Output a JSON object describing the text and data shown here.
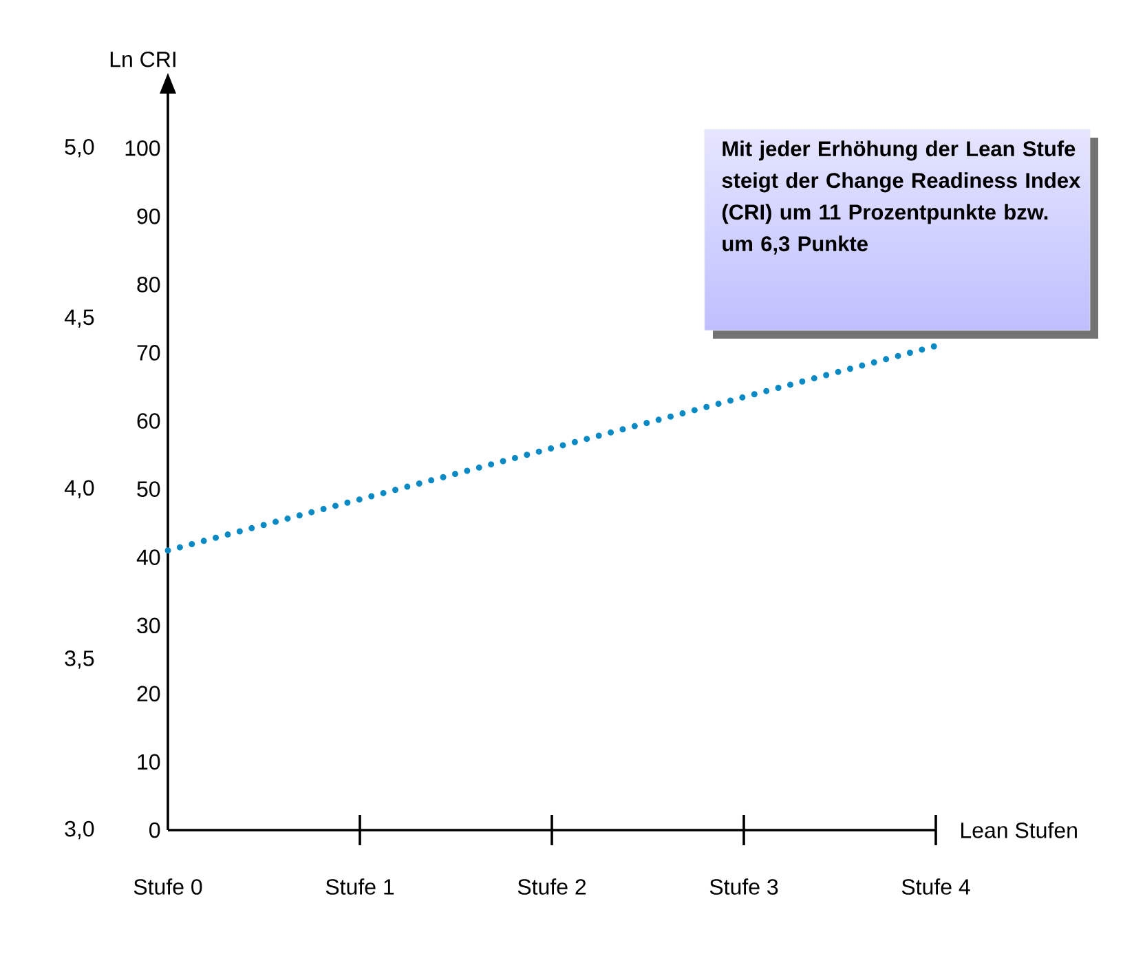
{
  "chart_data": {
    "type": "line",
    "categories": [
      "Stufe 0",
      "Stufe 1",
      "Stufe 2",
      "Stufe 3",
      "Stufe 4"
    ],
    "values": [
      41,
      48.5,
      56,
      63.5,
      71
    ],
    "color": "#0a8ac4",
    "line_style": "dotted",
    "marker": "none",
    "grid": false,
    "xlabel": "Lean Stufen",
    "ylabel": "Ln CRI",
    "ylim": [
      0,
      108
    ],
    "yticks": [
      0,
      10,
      20,
      30,
      40,
      50,
      60,
      70,
      80,
      90,
      100
    ],
    "y2lim": [
      3.0,
      5.0
    ],
    "y2ticks": [
      {
        "value": 3.0,
        "label": "3,0"
      },
      {
        "value": 3.5,
        "label": "3,5"
      },
      {
        "value": 4.0,
        "label": "4,0"
      },
      {
        "value": 4.5,
        "label": "4,5"
      },
      {
        "value": 5.0,
        "label": "5,0"
      }
    ],
    "annotations": [
      "Mit jeder Erhöhung der Lean Stufe steigt der Change Readiness Index (CRI) um 11 Prozentpunkte bzw. um 6,3 Punkte"
    ]
  }
}
